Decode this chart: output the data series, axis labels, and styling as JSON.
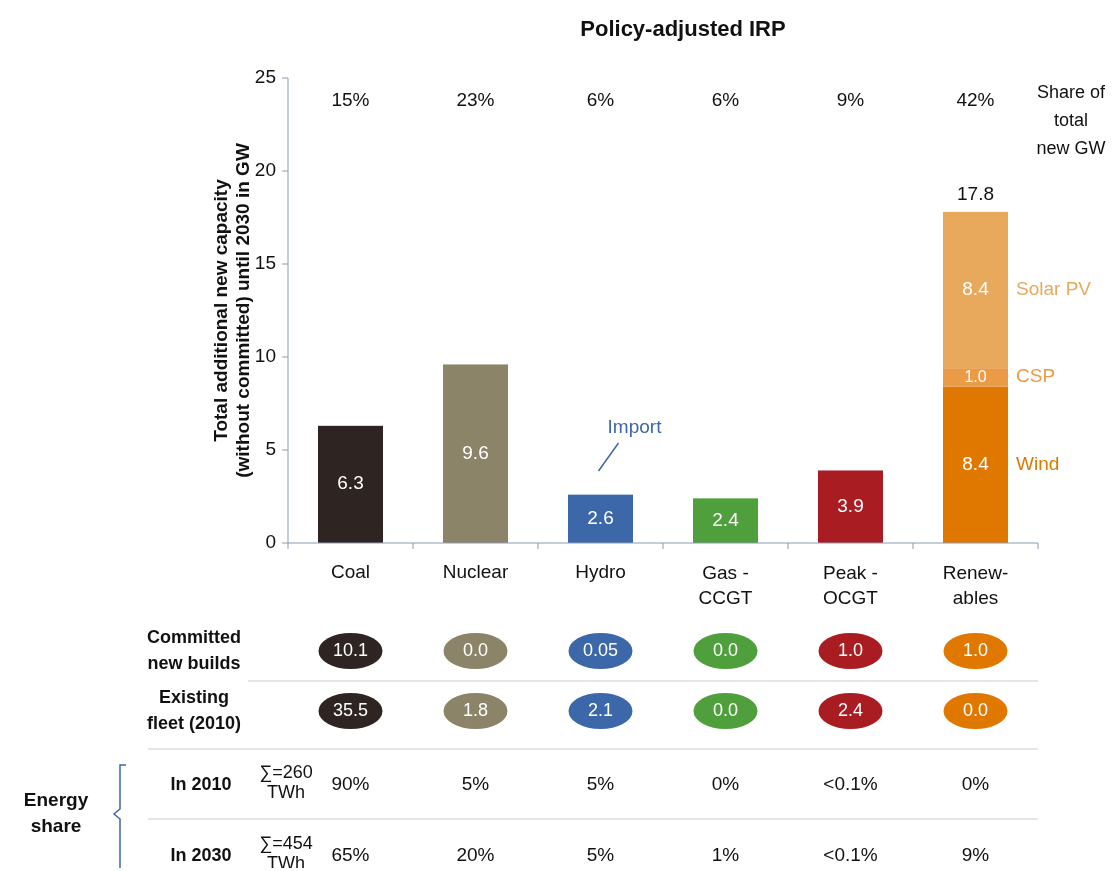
{
  "chart_data": {
    "type": "bar",
    "title": "Policy-adjusted IRP",
    "ylabel": "Total additional new capacity (without committed) until 2030 in GW",
    "categories": [
      "Coal",
      "Nuclear",
      "Hydro",
      "Gas - CCGT",
      "Peak - OCGT",
      "Renew-ables"
    ],
    "stacked": true,
    "series": [
      {
        "colors": [
          "#2e2422",
          "#8b8469",
          "#3c67a8",
          "#4fa03c",
          "#a91d22",
          "#e07800"
        ],
        "values": [
          6.3,
          9.6,
          2.6,
          2.4,
          3.9,
          null
        ],
        "value_labels": [
          "6.3",
          "9.6",
          "2.6",
          "2.4",
          "3.9",
          null
        ]
      },
      {
        "name": "Wind",
        "color": "#e07800",
        "values": [
          null,
          null,
          null,
          null,
          null,
          8.4
        ],
        "value_labels": [
          null,
          null,
          null,
          null,
          null,
          "8.4"
        ]
      },
      {
        "name": "CSP",
        "color": "#eb9a45",
        "values": [
          null,
          null,
          null,
          null,
          null,
          1.0
        ],
        "value_labels": [
          null,
          null,
          null,
          null,
          null,
          "1.0"
        ]
      },
      {
        "name": "Solar PV",
        "color": "#e8a95c",
        "values": [
          null,
          null,
          null,
          null,
          null,
          8.4
        ],
        "value_labels": [
          null,
          null,
          null,
          null,
          null,
          "8.4"
        ]
      }
    ],
    "totals": [
      null,
      null,
      null,
      null,
      null,
      "17.8"
    ],
    "ylim": [
      0,
      25
    ],
    "yticks": [
      0,
      5,
      10,
      15,
      20,
      25
    ],
    "grid": false,
    "annotations": [
      "15%",
      "23%",
      "6%",
      "6%",
      "9%",
      "42%",
      "Share of total new GW",
      "Import",
      "Committed new builds",
      "10.1",
      "0.0",
      "0.05",
      "0.0",
      "1.0",
      "1.0",
      "Existing fleet (2010)",
      "35.5",
      "1.8",
      "2.1",
      "0.0",
      "2.4",
      "0.0",
      "Energy share",
      "In 2010",
      "∑=260 TWh",
      "90%",
      "5%",
      "5%",
      "0%",
      "<0.1%",
      "0%",
      "In 2030",
      "∑=454 TWh",
      "65%",
      "20%",
      "5%",
      "1%",
      "<0.1%",
      "9%"
    ]
  }
}
